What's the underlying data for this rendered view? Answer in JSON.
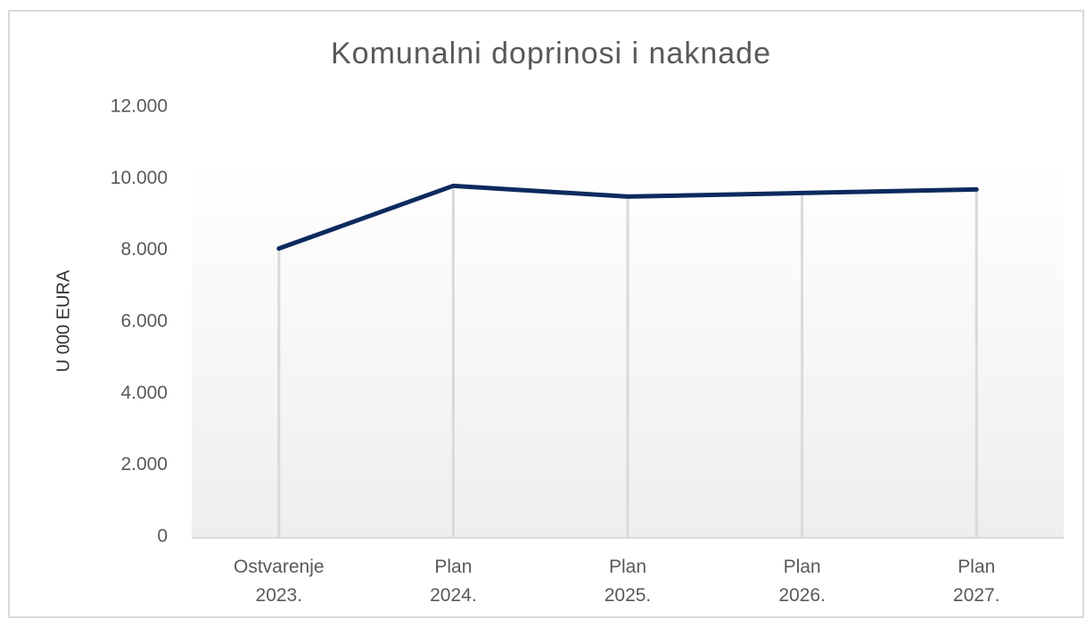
{
  "chart_data": {
    "type": "line",
    "title": "Komunalni doprinosi i naknade",
    "y_label": "U 000 EURA",
    "categories": [
      "Ostvarenje 2023.",
      "Plan 2024.",
      "Plan 2025.",
      "Plan 2026.",
      "Plan 2027."
    ],
    "values": [
      8050,
      9800,
      9500,
      9600,
      9700
    ],
    "color": "#0d2a5e",
    "ylim": [
      0,
      12000
    ],
    "yticks": [
      0,
      {
        "value": 2000,
        "label": "2.000"
      },
      {
        "value": 4000,
        "label": "4.000"
      },
      {
        "value": 6000,
        "label": "6.000"
      },
      {
        "value": 8000,
        "label": "8.000"
      },
      {
        "value": 10000,
        "label": "10.000"
      },
      {
        "value": 12000,
        "label": "12.000"
      }
    ],
    "drop_lines": true
  }
}
